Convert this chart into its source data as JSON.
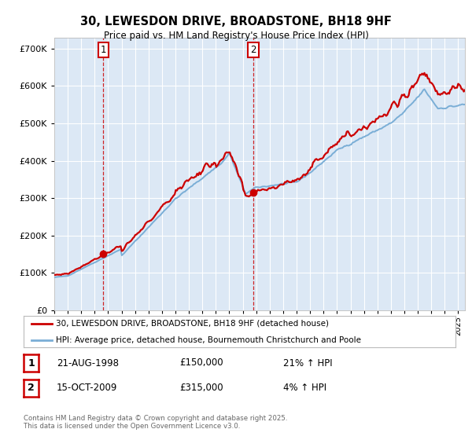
{
  "title": "30, LEWESDON DRIVE, BROADSTONE, BH18 9HF",
  "subtitle": "Price paid vs. HM Land Registry's House Price Index (HPI)",
  "background_color": "#ffffff",
  "plot_bg_color": "#dce8f5",
  "grid_color": "#ffffff",
  "hpi_color": "#7aaed6",
  "price_color": "#cc0000",
  "purchase1_date": 1998.644,
  "purchase1_price": 150000,
  "purchase2_date": 2009.788,
  "purchase2_price": 315000,
  "legend1": "30, LEWESDON DRIVE, BROADSTONE, BH18 9HF (detached house)",
  "legend2": "HPI: Average price, detached house, Bournemouth Christchurch and Poole",
  "table1": [
    "1",
    "21-AUG-1998",
    "£150,000",
    "21% ↑ HPI"
  ],
  "table2": [
    "2",
    "15-OCT-2009",
    "£315,000",
    "4% ↑ HPI"
  ],
  "footer": "Contains HM Land Registry data © Crown copyright and database right 2025.\nThis data is licensed under the Open Government Licence v3.0.",
  "ylim": [
    0,
    730000
  ],
  "xlim_start": 1995.0,
  "xlim_end": 2025.5
}
